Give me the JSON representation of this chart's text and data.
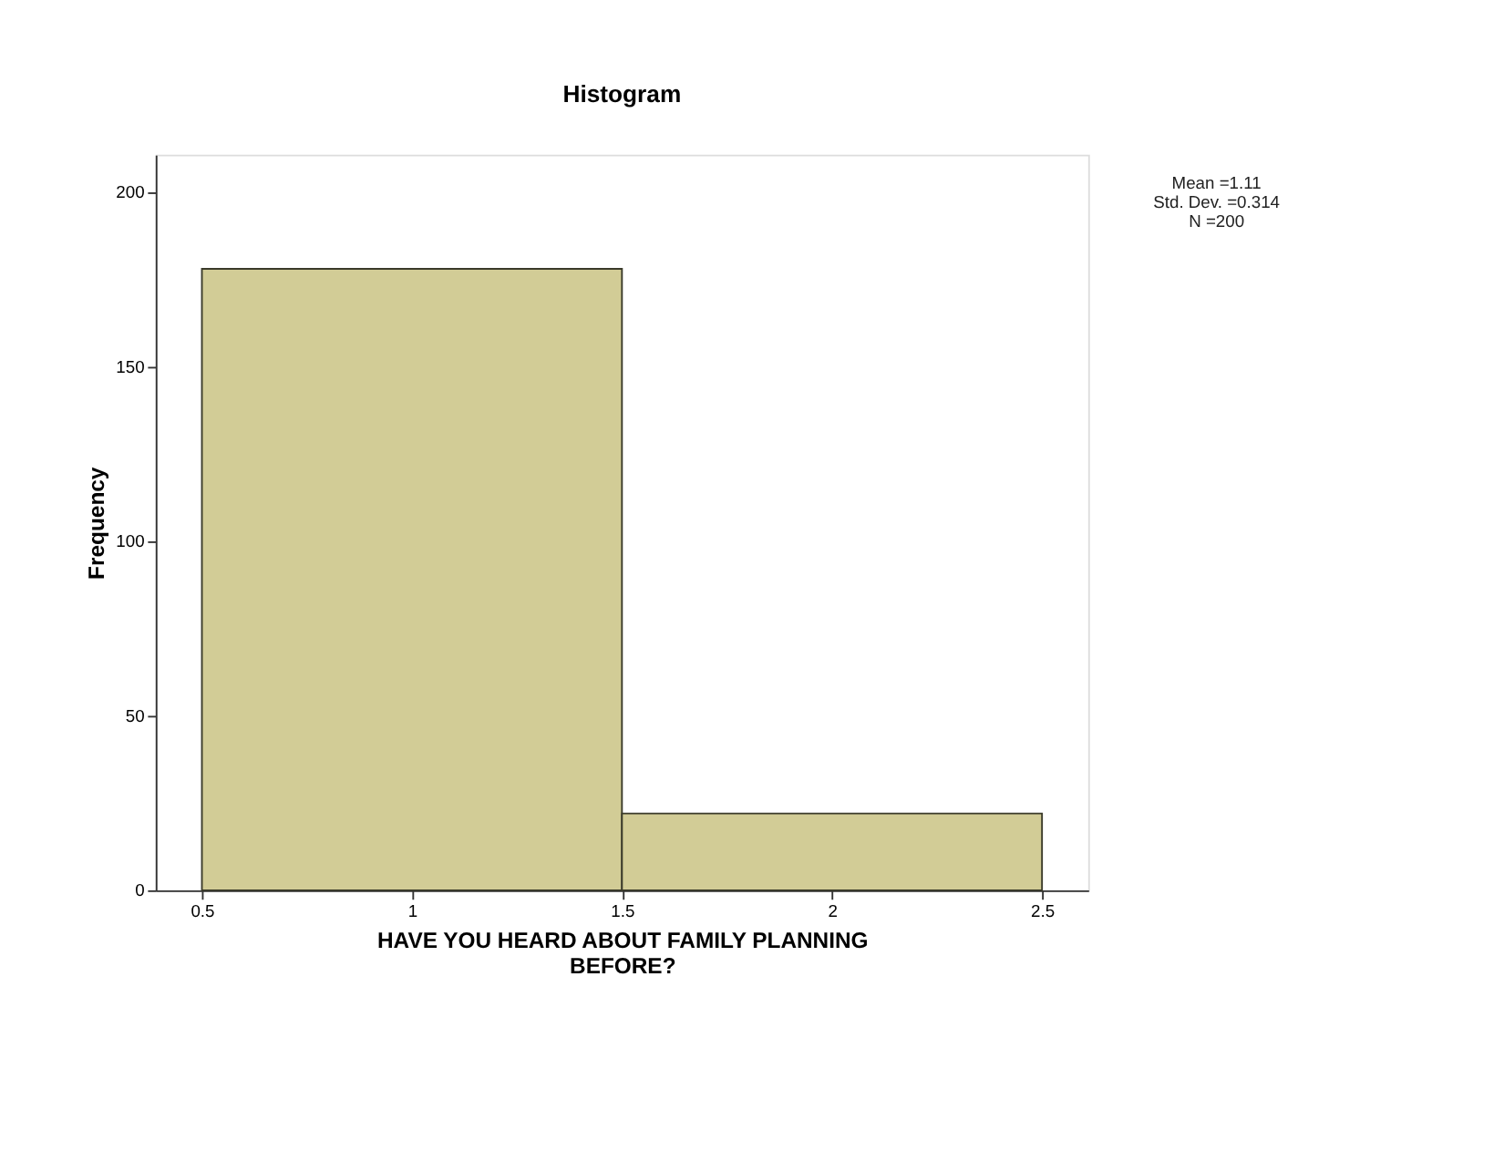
{
  "chart_data": {
    "type": "histogram",
    "title": "Histogram",
    "xlabel": "HAVE YOU HEARD ABOUT FAMILY PLANNING BEFORE?",
    "ylabel": "Frequency",
    "bins": [
      0.5,
      1.5,
      2.5
    ],
    "values": [
      178,
      22
    ],
    "color": "#d2cc96",
    "xlim": [
      0.39,
      2.61
    ],
    "xticks": [
      0.5,
      1,
      1.5,
      2,
      2.5
    ],
    "ylim": [
      0,
      210.7
    ],
    "yticks": [
      0,
      50,
      100,
      150,
      200
    ],
    "annotations": [
      "Mean =1.11",
      "Std. Dev. =0.314",
      "N =200"
    ],
    "grid": false
  }
}
